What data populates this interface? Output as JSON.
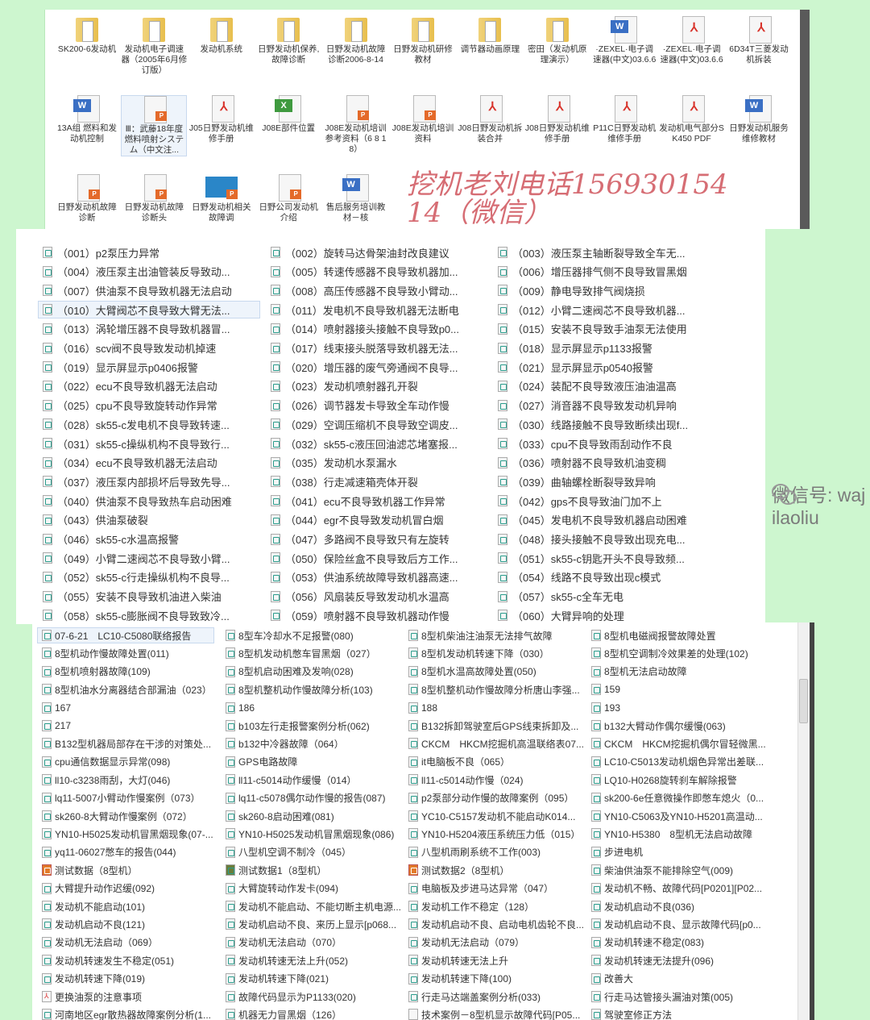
{
  "colors": {
    "background": "#cdf6cf",
    "watermark": "#c83c46",
    "selection": "#eef4fb"
  },
  "icon_view": {
    "items": [
      {
        "label": "SK200-6发动机",
        "type": "folder"
      },
      {
        "label": "发动机电子调速器（2005年6月修订版）",
        "type": "folder"
      },
      {
        "label": "发动机系统",
        "type": "folder"
      },
      {
        "label": "日野发动机保养,故障诊断",
        "type": "folder"
      },
      {
        "label": "日野发动机故障诊断2006-8-14",
        "type": "folder"
      },
      {
        "label": "日野发动机研修教材",
        "type": "folder"
      },
      {
        "label": "调节器动画原理",
        "type": "folder"
      },
      {
        "label": "密田（发动机原理演示）",
        "type": "folder"
      },
      {
        "label": "·ZEXEL·电子调速器(中文)03.6.6",
        "type": "word"
      },
      {
        "label": "·ZEXEL·电子调速器(中文)03.6.6",
        "type": "pdf"
      },
      {
        "label": "6D34T三菱发动机拆装",
        "type": "pdf"
      },
      {
        "label": "13A组 燃料和发动机控制",
        "type": "word"
      },
      {
        "label": "Ⅲ：武藤18年度燃料喷射システム（中文注...",
        "type": "ppt",
        "selected": true
      },
      {
        "label": "J05日野发动机维修手册",
        "type": "pdf"
      },
      {
        "label": "J08E部件位置",
        "type": "excel"
      },
      {
        "label": "J08E发动机培训参考资料（6 8 18）",
        "type": "ppt"
      },
      {
        "label": "J08E发动机培训资料",
        "type": "ppt"
      },
      {
        "label": "J08日野发动机拆装合并",
        "type": "pdf"
      },
      {
        "label": "J08日野发动机维修手册",
        "type": "pdf"
      },
      {
        "label": "P11C日野发动机维修手册",
        "type": "pdf"
      },
      {
        "label": "发动机电气部分SK450 PDF",
        "type": "pdf"
      },
      {
        "label": "日野发动机服务维修教材",
        "type": "word"
      },
      {
        "label": "日野发动机故障诊断",
        "type": "ppt"
      },
      {
        "label": "日野发动机故障诊断头",
        "type": "ppt"
      },
      {
        "label": "日野发动机相关故障调",
        "type": "pptblue"
      },
      {
        "label": "日野公司发动机介绍",
        "type": "ppt"
      },
      {
        "label": "售后服务培训教材－核",
        "type": "word"
      }
    ]
  },
  "case_list": {
    "items": [
      "（001）p2泵压力异常",
      "（002）旋转马达骨架油封改良建议",
      "（003）液压泵主轴断裂导致全车无...",
      "（004）液压泵主出油管装反导致动...",
      "（005）转速传感器不良导致机器加...",
      "（006）增压器排气侧不良导致冒黑烟",
      "（007）供油泵不良导致机器无法启动",
      "（008）高压传感器不良导致小臂动...",
      "（009）静电导致排气阀烧损",
      "（010）大臂阀芯不良导致大臂无法...",
      "（011）发电机不良导致机器无法断电",
      "（012）小臂二速阀芯不良导致机器...",
      "（013）涡轮增压器不良导致机器冒...",
      "（014）喷射器接头接触不良导致p0...",
      "（015）安装不良导致手油泵无法使用",
      "（016）scv阀不良导致发动机掉速",
      "（017）线束接头脱落导致机器无法...",
      "（018）显示屏显示p1133报警",
      "（019）显示屏显示p0406报警",
      "（020）增压器的废气旁通阀不良导...",
      "（021）显示屏显示p0540报警",
      "（022）ecu不良导致机器无法启动",
      "（023）发动机喷射器孔开裂",
      "（024）装配不良导致液压油油温高",
      "（025）cpu不良导致旋转动作异常",
      "（026）调节器发卡导致全车动作慢",
      "（027）消音器不良导致发动机异响",
      "（028）sk55-c发电机不良导致转速...",
      "（029）空调压缩机不良导致空调皮...",
      "（030）线路接触不良导致断续出现f...",
      "（031）sk55-c操纵机构不良导致行...",
      "（032）sk55-c液压回油滤芯堵塞报...",
      "（033）cpu不良导致雨刮动作不良",
      "（034）ecu不良导致机器无法启动",
      "（035）发动机水泵漏水",
      "（036）喷射器不良导致机油变稠",
      "（037）液压泵内部损坏后导致先导...",
      "（038）行走减速箱壳体开裂",
      "（039）曲轴螺栓断裂导致异响",
      "（040）供油泵不良导致热车启动困难",
      "（041）ecu不良导致机器工作异常",
      "（042）gps不良导致油门加不上",
      "（043）供油泵破裂",
      "（044）egr不良导致发动机冒白烟",
      "（045）发电机不良导致机器启动困难",
      "（046）sk55-c水温高报警",
      "（047）多路阀不良导致只有左旋转",
      "（048）接头接触不良导致出现充电...",
      "（049）小臂二速阀芯不良导致小臂...",
      "（050）保险丝盒不良导致后方工作...",
      "（051）sk55-c钥匙开头不良导致频...",
      "（052）sk55-c行走操纵机构不良导...",
      "（053）供油系统故障导致机器高速...",
      "（054）线路不良导致出现c模式",
      "（055）安装不良导致机油进入柴油",
      "（056）风扇装反导致发动机水温高",
      "（057）sk55-c全车无电",
      "（058）sk55-c膨胀阀不良导致致冷...",
      "（059）喷射器不良导致机器动作慢",
      "（060）大臂异响的处理"
    ]
  },
  "report_list": {
    "items": [
      {
        "label": "07-6-21　LC10-C5080联络报告",
        "selected": true
      },
      {
        "label": "8型车冷却水不足报警(080)"
      },
      {
        "label": "8型机柴油注油泵无法排气故障"
      },
      {
        "label": "8型机电磁阀报警故障处置"
      },
      {
        "label": "8型机动作慢故障处置(011)"
      },
      {
        "label": "8型机发动机憋车冒黑烟（027）"
      },
      {
        "label": "8型机发动机转速下降（030）"
      },
      {
        "label": "8型机空调制冷效果差的处理(102)"
      },
      {
        "label": "8型机喷射器故障(109)"
      },
      {
        "label": "8型机启动困难及发响(028)"
      },
      {
        "label": "8型机水温高故障处置(050)"
      },
      {
        "label": "8型机无法启动故障"
      },
      {
        "label": "8型机油水分离器结合部漏油（023）"
      },
      {
        "label": "8型机整机动作慢故障分析(103)"
      },
      {
        "label": "8型机整机动作慢故障分析唐山李强..."
      },
      {
        "label": "159"
      },
      {
        "label": "167"
      },
      {
        "label": "186"
      },
      {
        "label": "188"
      },
      {
        "label": "193"
      },
      {
        "label": "217"
      },
      {
        "label": "b103左行走报警案例分析(062)"
      },
      {
        "label": "B132拆卸驾驶室后GPS线束拆卸及..."
      },
      {
        "label": "b132大臂动作偶尔缓慢(063)"
      },
      {
        "label": "B132型机器局部存在干涉的对策处..."
      },
      {
        "label": "b132中冷器故障（064）"
      },
      {
        "label": "CKCM　HKCM挖掘机高温联络表07..."
      },
      {
        "label": "CKCM　HKCM挖掘机偶尔冒轻微黑..."
      },
      {
        "label": "cpu通信数据显示异常(098)"
      },
      {
        "label": "GPS电路故障"
      },
      {
        "label": "it电脑板不良（065）"
      },
      {
        "label": "LC10-C5013发动机烟色异常出差联..."
      },
      {
        "label": "ll10-c3238雨刮，大灯(046)"
      },
      {
        "label": "ll11-c5014动作缓慢（014）"
      },
      {
        "label": "ll11-c5014动作慢（024)"
      },
      {
        "label": "LQ10-H0268旋转刹车解除报警"
      },
      {
        "label": "lq11-5007小臂动作慢案例（073）"
      },
      {
        "label": "lq11-c5078偶尔动作慢的报告(087)"
      },
      {
        "label": "p2泵部分动作慢的故障案例（095）"
      },
      {
        "label": "sk200-6e任意微操作即憋车熄火（0..."
      },
      {
        "label": "sk260-8大臂动作慢案例（072）"
      },
      {
        "label": "sk260-8启动困难(081)"
      },
      {
        "label": "YC10-C5157发动机不能启动K014..."
      },
      {
        "label": "YN10-C5063及YN10-H5201高温动..."
      },
      {
        "label": "YN10-H5025发动机冒黑烟现象(07-..."
      },
      {
        "label": "YN10-H5025发动机冒黑烟现象(086)"
      },
      {
        "label": "YN10-H5204液压系统压力低（015）"
      },
      {
        "label": "YN10-H5380　8型机无法启动故障"
      },
      {
        "label": "yq11-06027憋车的报告(044)"
      },
      {
        "label": "八型机空调不制冷（045）"
      },
      {
        "label": "八型机雨刷系统不工作(003)"
      },
      {
        "label": "步进电机"
      },
      {
        "label": "测试数据（8型机）",
        "icon": "img"
      },
      {
        "label": "测试数据1（8型机）",
        "icon": "other"
      },
      {
        "label": "测试数据2（8型机）",
        "icon": "img"
      },
      {
        "label": "柴油供油泵不能排除空气(009)"
      },
      {
        "label": "大臂提升动作迟缓(092)"
      },
      {
        "label": "大臂旋转动作发卡(094)"
      },
      {
        "label": "电脑板及步进马达异常（047）"
      },
      {
        "label": "发动机不畅、故障代码[P0201][P02..."
      },
      {
        "label": "发动机不能启动(101)"
      },
      {
        "label": "发动机不能启动、不能切断主机电源..."
      },
      {
        "label": "发动机工作不稳定（128）"
      },
      {
        "label": "发动机启动不良(036)"
      },
      {
        "label": "发动机启动不良(121)"
      },
      {
        "label": "发动机启动不良、来历上显示[p068..."
      },
      {
        "label": "发动机启动不良、启动电机齿轮不良..."
      },
      {
        "label": "发动机启动不良、显示故障代码[p0..."
      },
      {
        "label": "发动机无法启动（069）"
      },
      {
        "label": "发动机无法启动（070）"
      },
      {
        "label": "发动机无法启动（079）"
      },
      {
        "label": "发动机转速不稳定(083)"
      },
      {
        "label": "发动机转速发生不稳定(051)"
      },
      {
        "label": "发动机转速无法上升(052)"
      },
      {
        "label": "发动机转速无法上升"
      },
      {
        "label": "发动机转速无法提升(096)"
      },
      {
        "label": "发动机转速下降(019)"
      },
      {
        "label": "发动机转速下降(021)"
      },
      {
        "label": "发动机转速下降(100)"
      },
      {
        "label": "改善大"
      },
      {
        "label": "更换油泵的注意事项",
        "icon": "pdf"
      },
      {
        "label": "故障代码显示为P1133(020)"
      },
      {
        "label": "行走马达端盖案例分析(033)"
      },
      {
        "label": "行走马达管接头漏油对策(005)"
      },
      {
        "label": "河南地区egr散热器故障案例分析(1..."
      },
      {
        "label": "机器无力冒黑烟（126）"
      },
      {
        "label": "技术案例－8型机显示故障代码[P05...",
        "icon": "blank"
      },
      {
        "label": "驾驶室修正方法"
      }
    ]
  },
  "watermark": {
    "text": "挖机老刘电话15693015414（微信）"
  },
  "wechat_id": {
    "text": "微信号: wajilaoliu"
  }
}
